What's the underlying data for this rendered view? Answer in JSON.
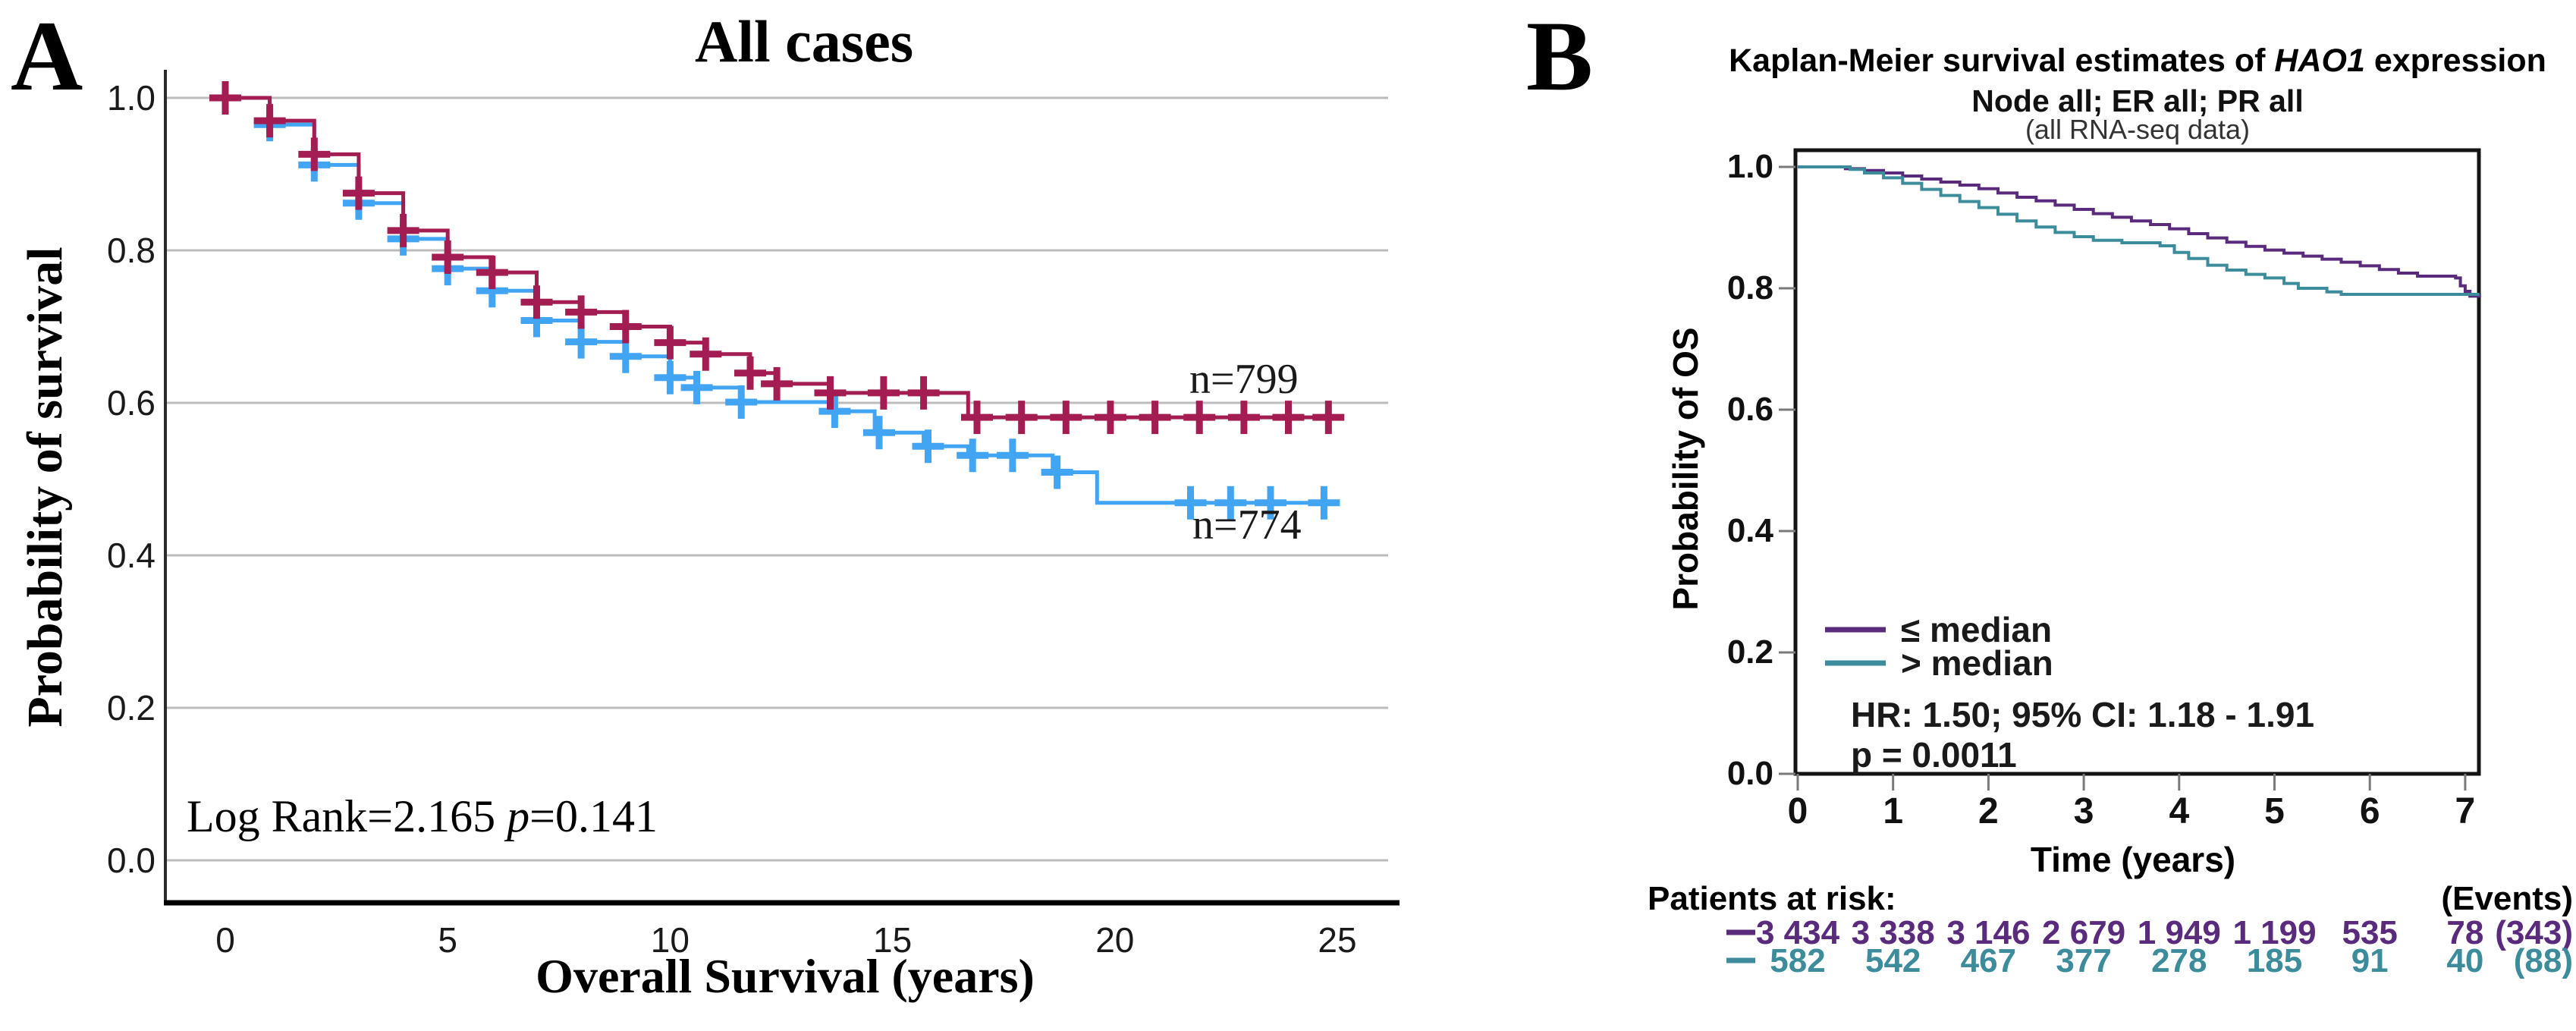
{
  "panel_a": {
    "label": "A",
    "title": "All cases",
    "x_label": "Overall Survival (years)",
    "y_label": "Probability of survival",
    "x_tick_labels": [
      "0",
      "5",
      "10",
      "15",
      "20",
      "25"
    ],
    "y_tick_labels": [
      "1.0",
      "0.8",
      "0.6",
      "0.4",
      "0.2",
      "0.0"
    ],
    "stats": {
      "pre": "Log Rank=2.165 ",
      "p": "p",
      "post": "=0.141"
    },
    "group1_label": "n=799",
    "group2_label": "n=774",
    "colors": {
      "group1": "#A41D52",
      "group2": "#42A5F4",
      "grid": "#bcbcbc",
      "axis": "#2b2b2b"
    }
  },
  "panel_b": {
    "label": "B",
    "title": {
      "pre": "Kaplan-Meier survival estimates of ",
      "gene": "HAO1",
      "post": " expression"
    },
    "subtitle": "Node all; ER all; PR all",
    "note": "(all RNA-seq data)",
    "x_label": "Time (years)",
    "y_label": "Probability of OS",
    "x_tick_labels": [
      "0",
      "1",
      "2",
      "3",
      "4",
      "5",
      "6",
      "7"
    ],
    "y_tick_labels": [
      "1.0",
      "0.8",
      "0.6",
      "0.4",
      "0.2",
      "0.0"
    ],
    "legend": [
      {
        "label": "≤ median",
        "color": "#5A2B7D"
      },
      {
        "label": "> median",
        "color": "#3C8C9C"
      }
    ],
    "stats": {
      "hr_line": "HR: 1.50; 95% CI: 1.18 - 1.91",
      "p_line": "p = 0.0011"
    },
    "risk_table": {
      "header": "Patients at risk:",
      "events_header": "(Events)",
      "rows": [
        {
          "color": "#5A2B7D",
          "values": [
            "3 434",
            "3 338",
            "3 146",
            "2 679",
            "1 949",
            "1 199",
            "535",
            "78"
          ],
          "events": "(343)"
        },
        {
          "color": "#3C8C9C",
          "values": [
            "582",
            "542",
            "467",
            "377",
            "278",
            "185",
            "91",
            "40"
          ],
          "events": "(88)"
        }
      ]
    },
    "colors": {
      "frame": "#141414",
      "tick": "#7a7a7a"
    }
  },
  "chart_data": [
    {
      "type": "line",
      "title": "All cases",
      "xlabel": "Overall Survival (years)",
      "ylabel": "Probability of survival",
      "xlim": [
        0,
        25
      ],
      "ylim": [
        0.0,
        1.0
      ],
      "x_ticks": [
        0,
        5,
        10,
        15,
        20,
        25
      ],
      "y_ticks": [
        1.0,
        0.8,
        0.6,
        0.4,
        0.2,
        0.0
      ],
      "grid": true,
      "annotation": "Log Rank=2.165 p=0.141",
      "series": [
        {
          "name": "n=799",
          "color": "#A41D52",
          "steps": [
            [
              0,
              1.0
            ],
            [
              1,
              0.97
            ],
            [
              2,
              0.926
            ],
            [
              3,
              0.875
            ],
            [
              4,
              0.826
            ],
            [
              5,
              0.791
            ],
            [
              6,
              0.771
            ],
            [
              7,
              0.732
            ],
            [
              8,
              0.719
            ],
            [
              9,
              0.7
            ],
            [
              10,
              0.679
            ],
            [
              10.8,
              0.664
            ],
            [
              11.8,
              0.639
            ],
            [
              12.4,
              0.625
            ],
            [
              13.6,
              0.613
            ],
            [
              16.7,
              0.581
            ],
            [
              25,
              0.581
            ]
          ],
          "censor_times": [
            0,
            1,
            2,
            3,
            4,
            5,
            6,
            7,
            8,
            9,
            10,
            10.8,
            11.8,
            12.4,
            13.6,
            14.8,
            15.7,
            16.9,
            17.9,
            18.9,
            19.9,
            20.9,
            21.9,
            22.9,
            23.9,
            24.8
          ]
        },
        {
          "name": "n=774",
          "color": "#42A5F4",
          "steps": [
            [
              0,
              1.0
            ],
            [
              1,
              0.965
            ],
            [
              2,
              0.912
            ],
            [
              3,
              0.862
            ],
            [
              4,
              0.815
            ],
            [
              5,
              0.776
            ],
            [
              6,
              0.747
            ],
            [
              7,
              0.708
            ],
            [
              8,
              0.68
            ],
            [
              9,
              0.661
            ],
            [
              10,
              0.633
            ],
            [
              10.6,
              0.62
            ],
            [
              11.6,
              0.601
            ],
            [
              13.6,
              0.589
            ],
            [
              14.6,
              0.561
            ],
            [
              15.7,
              0.543
            ],
            [
              16.7,
              0.531
            ],
            [
              18.6,
              0.509
            ],
            [
              19.6,
              0.469
            ],
            [
              25,
              0.469
            ]
          ],
          "censor_times": [
            1,
            2,
            3,
            4,
            5,
            6,
            7,
            8,
            9,
            10,
            10.6,
            11.6,
            13.7,
            14.7,
            15.8,
            16.8,
            17.7,
            18.7,
            21.7,
            22.6,
            23.5,
            24.7
          ]
        }
      ]
    },
    {
      "type": "line",
      "title": "Kaplan-Meier survival estimates of HAO1 expression",
      "subtitle": "Node all; ER all; PR all",
      "note": "(all RNA-seq data)",
      "xlabel": "Time (years)",
      "ylabel": "Probability of OS",
      "xlim": [
        0,
        7.15
      ],
      "ylim": [
        0.0,
        1.0
      ],
      "x_ticks": [
        0,
        1,
        2,
        3,
        4,
        5,
        6,
        7
      ],
      "y_ticks": [
        1.0,
        0.8,
        0.6,
        0.4,
        0.2,
        0.0
      ],
      "grid": false,
      "legend_position": "lower-left",
      "annotation": "HR: 1.50; 95% CI: 1.18 - 1.91; p = 0.0011",
      "series": [
        {
          "name": "≤ median",
          "color": "#5A2B7D",
          "steps": [
            [
              0,
              1.0
            ],
            [
              0.35,
              1.0
            ],
            [
              0.5,
              0.997
            ],
            [
              0.7,
              0.994
            ],
            [
              0.9,
              0.99
            ],
            [
              1.1,
              0.985
            ],
            [
              1.3,
              0.98
            ],
            [
              1.5,
              0.975
            ],
            [
              1.7,
              0.97
            ],
            [
              1.9,
              0.964
            ],
            [
              2.1,
              0.957
            ],
            [
              2.3,
              0.95
            ],
            [
              2.5,
              0.944
            ],
            [
              2.7,
              0.937
            ],
            [
              2.9,
              0.93
            ],
            [
              3.1,
              0.923
            ],
            [
              3.3,
              0.917
            ],
            [
              3.5,
              0.911
            ],
            [
              3.7,
              0.905
            ],
            [
              3.9,
              0.898
            ],
            [
              4.1,
              0.89
            ],
            [
              4.3,
              0.883
            ],
            [
              4.5,
              0.876
            ],
            [
              4.7,
              0.869
            ],
            [
              4.9,
              0.863
            ],
            [
              5.1,
              0.858
            ],
            [
              5.3,
              0.853
            ],
            [
              5.5,
              0.848
            ],
            [
              5.7,
              0.843
            ],
            [
              5.9,
              0.837
            ],
            [
              6.1,
              0.831
            ],
            [
              6.3,
              0.825
            ],
            [
              6.5,
              0.82
            ],
            [
              6.9,
              0.817
            ],
            [
              6.95,
              0.804
            ],
            [
              7.0,
              0.795
            ],
            [
              7.05,
              0.787
            ],
            [
              7.15,
              0.785
            ]
          ],
          "at_risk": [
            3434,
            3338,
            3146,
            2679,
            1949,
            1199,
            535,
            78
          ],
          "events": 343
        },
        {
          "name": "> median",
          "color": "#3C8C9C",
          "steps": [
            [
              0,
              1.0
            ],
            [
              0.4,
              1.0
            ],
            [
              0.55,
              0.996
            ],
            [
              0.7,
              0.99
            ],
            [
              0.9,
              0.982
            ],
            [
              1.1,
              0.973
            ],
            [
              1.3,
              0.963
            ],
            [
              1.5,
              0.953
            ],
            [
              1.7,
              0.943
            ],
            [
              1.9,
              0.933
            ],
            [
              2.1,
              0.922
            ],
            [
              2.3,
              0.911
            ],
            [
              2.5,
              0.901
            ],
            [
              2.7,
              0.892
            ],
            [
              2.9,
              0.885
            ],
            [
              3.1,
              0.879
            ],
            [
              3.4,
              0.875
            ],
            [
              3.8,
              0.87
            ],
            [
              3.95,
              0.859
            ],
            [
              4.1,
              0.849
            ],
            [
              4.3,
              0.838
            ],
            [
              4.5,
              0.83
            ],
            [
              4.7,
              0.823
            ],
            [
              4.9,
              0.817
            ],
            [
              5.1,
              0.808
            ],
            [
              5.25,
              0.8
            ],
            [
              5.55,
              0.794
            ],
            [
              5.7,
              0.79
            ],
            [
              7.15,
              0.79
            ]
          ],
          "at_risk": [
            582,
            542,
            467,
            377,
            278,
            185,
            91,
            40
          ],
          "events": 88
        }
      ]
    }
  ]
}
